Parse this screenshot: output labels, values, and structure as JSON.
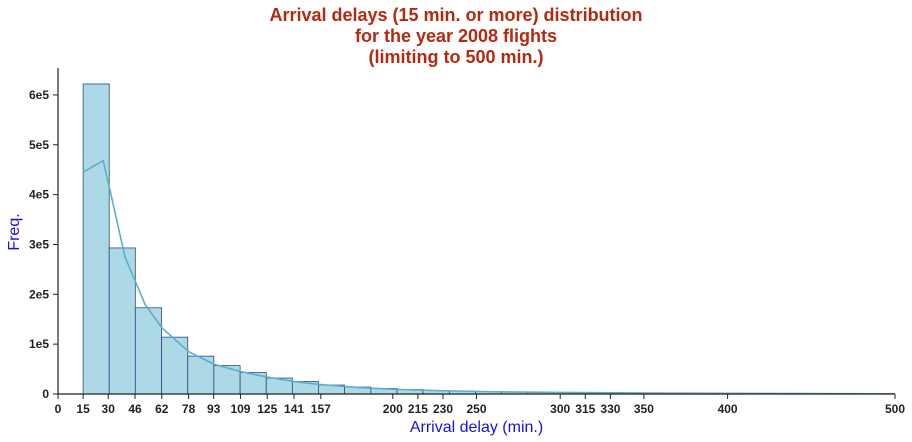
{
  "chart_data": {
    "type": "bar",
    "title_lines": [
      "Arrival delays (15 min. or more) distribution",
      "for the year 2008 flights",
      "(limiting to 500 min.)"
    ],
    "xlabel": "Arrival delay (min.)",
    "ylabel": "Freq.",
    "title_color": "#b22a10",
    "label_color": "#1a10e0",
    "bar_fill": "#add8e6",
    "bar_edge": "#2a4a8a",
    "kde_color": "#5aafcc",
    "xlim": [
      0,
      500
    ],
    "ylim": [
      0,
      650000
    ],
    "grid": false,
    "xticks": [
      0,
      15,
      30,
      46,
      62,
      78,
      93,
      109,
      125,
      141,
      157,
      200,
      215,
      230,
      250,
      300,
      315,
      330,
      350,
      400,
      500
    ],
    "yticks": [
      {
        "value": 0,
        "label": "0"
      },
      {
        "value": 100000,
        "label": "1e5"
      },
      {
        "value": 200000,
        "label": "2e5"
      },
      {
        "value": 300000,
        "label": "3e5"
      },
      {
        "value": 400000,
        "label": "4e5"
      },
      {
        "value": 500000,
        "label": "5e5"
      },
      {
        "value": 600000,
        "label": "6e5"
      }
    ],
    "bins": [
      {
        "x0": 15,
        "x1": 30.6,
        "value": 622000
      },
      {
        "x0": 30.6,
        "x1": 46.2,
        "value": 293000
      },
      {
        "x0": 46.2,
        "x1": 61.9,
        "value": 173000
      },
      {
        "x0": 61.9,
        "x1": 77.5,
        "value": 114000
      },
      {
        "x0": 77.5,
        "x1": 93.1,
        "value": 76000
      },
      {
        "x0": 93.1,
        "x1": 108.8,
        "value": 57000
      },
      {
        "x0": 108.8,
        "x1": 124.4,
        "value": 43000
      },
      {
        "x0": 124.4,
        "x1": 140.0,
        "value": 32000
      },
      {
        "x0": 140.0,
        "x1": 155.6,
        "value": 25000
      },
      {
        "x0": 155.6,
        "x1": 171.2,
        "value": 18000
      },
      {
        "x0": 171.2,
        "x1": 186.9,
        "value": 14000
      },
      {
        "x0": 186.9,
        "x1": 202.5,
        "value": 11000
      },
      {
        "x0": 202.5,
        "x1": 218.1,
        "value": 9000
      },
      {
        "x0": 218.1,
        "x1": 233.8,
        "value": 7000
      },
      {
        "x0": 233.8,
        "x1": 249.4,
        "value": 6000
      },
      {
        "x0": 249.4,
        "x1": 265.0,
        "value": 5000
      },
      {
        "x0": 265.0,
        "x1": 280.6,
        "value": 4000
      },
      {
        "x0": 280.6,
        "x1": 296.2,
        "value": 3500
      },
      {
        "x0": 296.2,
        "x1": 311.9,
        "value": 3000
      },
      {
        "x0": 311.9,
        "x1": 327.5,
        "value": 2500
      },
      {
        "x0": 327.5,
        "x1": 343.1,
        "value": 2000
      },
      {
        "x0": 343.1,
        "x1": 358.8,
        "value": 1800
      },
      {
        "x0": 358.8,
        "x1": 374.4,
        "value": 1500
      },
      {
        "x0": 374.4,
        "x1": 390.0,
        "value": 1300
      },
      {
        "x0": 390.0,
        "x1": 405.6,
        "value": 1100
      },
      {
        "x0": 405.6,
        "x1": 421.2,
        "value": 1000
      },
      {
        "x0": 421.2,
        "x1": 436.9,
        "value": 900
      },
      {
        "x0": 436.9,
        "x1": 452.5,
        "value": 800
      },
      {
        "x0": 452.5,
        "x1": 468.1,
        "value": 700
      },
      {
        "x0": 468.1,
        "x1": 483.8,
        "value": 600
      },
      {
        "x0": 483.8,
        "x1": 499.4,
        "value": 500
      }
    ],
    "kde": [
      {
        "x": 15,
        "y": 445000
      },
      {
        "x": 27,
        "y": 468000
      },
      {
        "x": 31,
        "y": 410000
      },
      {
        "x": 40,
        "y": 275000
      },
      {
        "x": 52,
        "y": 180000
      },
      {
        "x": 62,
        "y": 133000
      },
      {
        "x": 78,
        "y": 85000
      },
      {
        "x": 93,
        "y": 60000
      },
      {
        "x": 109,
        "y": 45000
      },
      {
        "x": 125,
        "y": 34000
      },
      {
        "x": 141,
        "y": 25000
      },
      {
        "x": 157,
        "y": 19000
      },
      {
        "x": 180,
        "y": 13000
      },
      {
        "x": 200,
        "y": 9500
      },
      {
        "x": 230,
        "y": 6500
      },
      {
        "x": 260,
        "y": 4500
      },
      {
        "x": 300,
        "y": 3200
      },
      {
        "x": 350,
        "y": 2000
      },
      {
        "x": 400,
        "y": 1300
      },
      {
        "x": 450,
        "y": 900
      },
      {
        "x": 500,
        "y": 500
      }
    ]
  }
}
